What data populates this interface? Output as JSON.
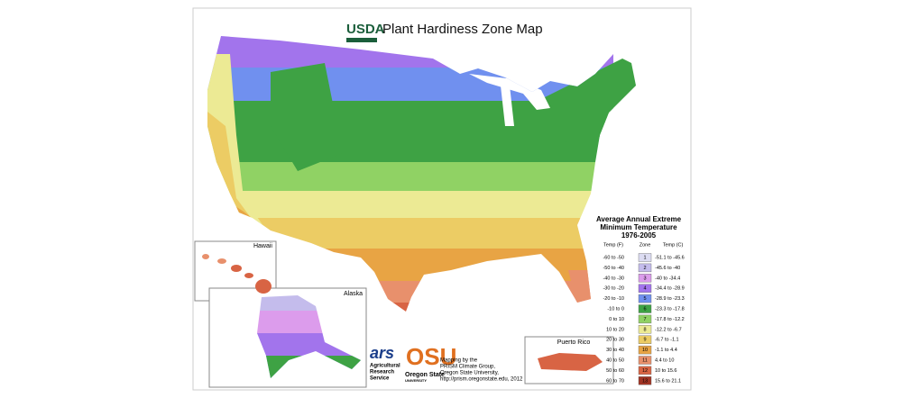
{
  "header": {
    "logo": "USDA",
    "title": "Plant Hardiness Zone Map"
  },
  "legend": {
    "title": [
      "Average Annual Extreme",
      "Minimum Temperature",
      "1976-2005"
    ],
    "columns": [
      "Temp (F)",
      "Zone",
      "Temp (C)"
    ],
    "rows": [
      {
        "f": "-60 to -50",
        "zone": "1",
        "c": "-51.1 to -45.6",
        "color": "#dcdcf2"
      },
      {
        "f": "-50 to -40",
        "zone": "2",
        "c": "-45.6 to -40",
        "color": "#c4bcec"
      },
      {
        "f": "-40 to -30",
        "zone": "3",
        "c": "-40 to -34.4",
        "color": "#dc9cec"
      },
      {
        "f": "-30 to -20",
        "zone": "4",
        "c": "-34.4 to -28.9",
        "color": "#a274ec"
      },
      {
        "f": "-20 to -10",
        "zone": "5",
        "c": "-28.9 to -23.3",
        "color": "#7090ef"
      },
      {
        "f": "-10 to 0",
        "zone": "6",
        "c": "-23.3 to -17.8",
        "color": "#3ea244"
      },
      {
        "f": "0 to 10",
        "zone": "7",
        "c": "-17.8 to -12.2",
        "color": "#90d264"
      },
      {
        "f": "10 to 20",
        "zone": "8",
        "c": "-12.2 to -6.7",
        "color": "#ecea94"
      },
      {
        "f": "20 to 30",
        "zone": "9",
        "c": "-6.7 to -1.1",
        "color": "#eccc64"
      },
      {
        "f": "30 to 40",
        "zone": "10",
        "c": "-1.1 to 4.4",
        "color": "#e8a444"
      },
      {
        "f": "40 to 50",
        "zone": "11",
        "c": "4.4 to 10",
        "color": "#e8906c"
      },
      {
        "f": "50 to 60",
        "zone": "12",
        "c": "10 to 15.6",
        "color": "#d86444"
      },
      {
        "f": "60 to 70",
        "zone": "13",
        "c": "15.6 to 21.1",
        "color": "#a03424"
      }
    ]
  },
  "insets": {
    "hawaii": "Hawaii",
    "alaska": "Alaska",
    "puerto_rico": "Puerto Rico"
  },
  "credits": {
    "ars": "ars",
    "ars_name": [
      "Agricultural",
      "Research",
      "Service"
    ],
    "osu": "OSU",
    "osu_name": [
      "Oregon State",
      "UNIVERSITY"
    ],
    "mapping": [
      "Mapping by the",
      "PRISM Climate Group,",
      "Oregon State University,",
      "http://prism.oregonstate.edu, 2012"
    ]
  }
}
